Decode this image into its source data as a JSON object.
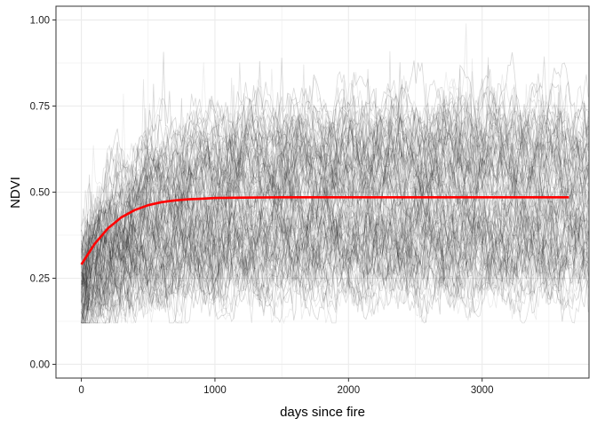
{
  "chart_data": {
    "type": "line",
    "title": "",
    "xlabel": "days since fire",
    "ylabel": "NDVI",
    "xlim": [
      -190,
      3800
    ],
    "ylim": [
      -0.04,
      1.04
    ],
    "grid": true,
    "x_ticks": [
      0,
      1000,
      2000,
      3000
    ],
    "x_tick_labels": [
      "0",
      "1000",
      "2000",
      "3000"
    ],
    "y_ticks": [
      0.0,
      0.25,
      0.5,
      0.75,
      1.0
    ],
    "y_tick_labels": [
      "0.00",
      "0.25",
      "0.50",
      "0.75",
      "1.00"
    ],
    "colors": {
      "trajectories": "#000000",
      "fit": "#ff0000",
      "grid": "#ebebeb",
      "panel_border": "#333333"
    },
    "trajectories": {
      "description": "many overlapping semi-transparent black NDVI time series per pixel",
      "count_approx": 120,
      "x_range": [
        0,
        3800
      ],
      "start_ndvi_range": [
        0.15,
        0.3
      ],
      "upper_cluster_ndvi": 0.6,
      "lower_cluster_ndvi": 0.35,
      "seasonal_period_days": 365
    },
    "fit_series": {
      "x": [
        0,
        100,
        200,
        300,
        400,
        500,
        600,
        700,
        800,
        900,
        1000,
        1200,
        1500,
        2000,
        2500,
        3000,
        3650
      ],
      "y": [
        0.29,
        0.35,
        0.395,
        0.427,
        0.448,
        0.462,
        0.471,
        0.476,
        0.479,
        0.481,
        0.483,
        0.484,
        0.485,
        0.485,
        0.485,
        0.485,
        0.485
      ]
    }
  }
}
